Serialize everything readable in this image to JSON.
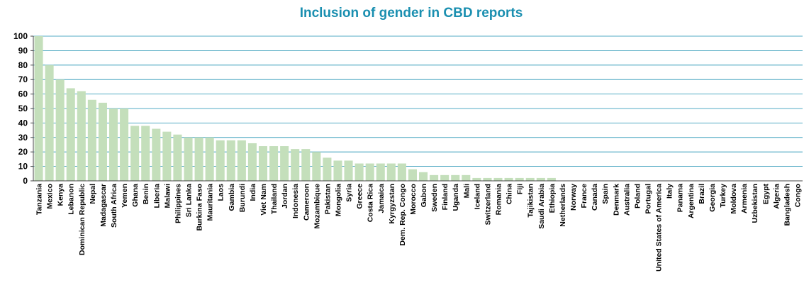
{
  "chart_data": {
    "type": "bar",
    "title": "Inclusion of gender in CBD reports",
    "xlabel": "",
    "ylabel": "",
    "ylim": [
      0,
      100
    ],
    "yticks": [
      0,
      10,
      20,
      30,
      40,
      50,
      60,
      70,
      80,
      90,
      100
    ],
    "grid": true,
    "legend": "none",
    "colors": {
      "title": "#1a8fb0",
      "bar": "#c4dfbb",
      "grid": "#1a8fb0",
      "axis": "#444444"
    },
    "categories": [
      "Tanzania",
      "Mexico",
      "Kenya",
      "Lebanon",
      "Dominican Republic",
      "Nepal",
      "Madagascar",
      "South Africa",
      "Yemen",
      "Ghana",
      "Benin",
      "Liberia",
      "Malawi",
      "Philippines",
      "Sri Lanka",
      "Burkina Faso",
      "Mauritania",
      "Laos",
      "Gambia",
      "Burundi",
      "India",
      "Viet Nam",
      "Thailand",
      "Jordan",
      "Indonesia",
      "Cameroon",
      "Mozambique",
      "Pakistan",
      "Mongolia",
      "Syria",
      "Greece",
      "Costa Rica",
      "Jamaica",
      "Kyrgyzstan",
      "Dem. Rep. Congo",
      "Morocco",
      "Gabon",
      "Sweden",
      "Finland",
      "Uganda",
      "Mali",
      "Iceland",
      "Switzerland",
      "Romania",
      "China",
      "Fiji",
      "Tajikistan",
      "Saudi Arabia",
      "Ethiopia",
      "Netherlands",
      "Norway",
      "France",
      "Canada",
      "Spain",
      "Denmark",
      "Australia",
      "Poland",
      "Portugal",
      "United States of America",
      "Italy",
      "Panama",
      "Argentina",
      "Brazil",
      "Georgia",
      "Turkey",
      "Moldova",
      "Armenia",
      "Uzbekistan",
      "Egypt",
      "Algeria",
      "Bangladesh",
      "Congo"
    ],
    "values": [
      100,
      80,
      70,
      64,
      62,
      56,
      54,
      50,
      50,
      38,
      38,
      36,
      34,
      32,
      30,
      30,
      30,
      28,
      28,
      28,
      26,
      24,
      24,
      24,
      22,
      22,
      20,
      16,
      14,
      14,
      12,
      12,
      12,
      12,
      12,
      8,
      6,
      4,
      4,
      4,
      4,
      2,
      2,
      2,
      2,
      2,
      2,
      2,
      2,
      0,
      0,
      0,
      0,
      0,
      0,
      0,
      0,
      0,
      0,
      0,
      0,
      0,
      0,
      0,
      0,
      0,
      0,
      0,
      0,
      0,
      0,
      0
    ]
  }
}
